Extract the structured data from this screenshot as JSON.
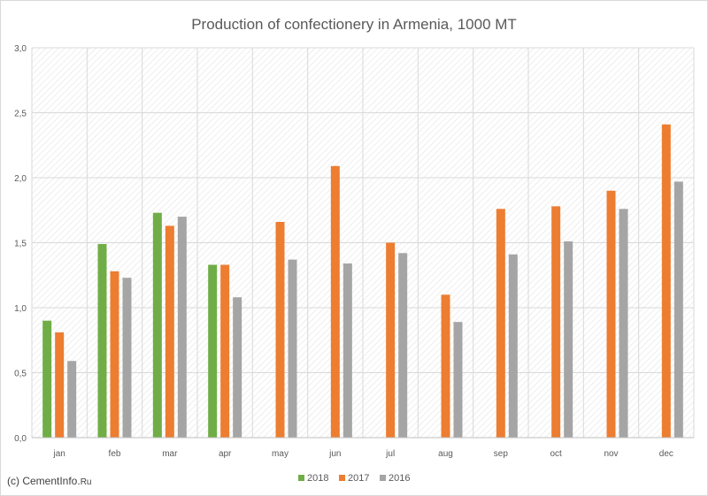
{
  "chart_data": {
    "type": "bar",
    "title": "Production of confectionery in Armenia, 1000 MT",
    "categories": [
      "jan",
      "feb",
      "mar",
      "apr",
      "may",
      "jun",
      "jul",
      "aug",
      "sep",
      "oct",
      "nov",
      "dec"
    ],
    "series": [
      {
        "name": "2018",
        "color": "#70ad47",
        "values": [
          0.9,
          1.49,
          1.73,
          1.33,
          null,
          null,
          null,
          null,
          null,
          null,
          null,
          null
        ]
      },
      {
        "name": "2017",
        "color": "#ed7d31",
        "values": [
          0.81,
          1.28,
          1.63,
          1.33,
          1.66,
          2.09,
          1.5,
          1.1,
          1.76,
          1.78,
          1.9,
          2.41
        ]
      },
      {
        "name": "2016",
        "color": "#a5a5a5",
        "values": [
          0.59,
          1.23,
          1.7,
          1.08,
          1.37,
          1.34,
          1.42,
          0.89,
          1.41,
          1.51,
          1.76,
          1.97
        ]
      }
    ],
    "ylim": [
      0,
      3
    ],
    "yticks": [
      0,
      0.5,
      1,
      1.5,
      2,
      2.5,
      3
    ],
    "ytick_labels": [
      "0,0",
      "0,5",
      "1,0",
      "1,5",
      "2,0",
      "2,5",
      "3,0"
    ],
    "grid": true,
    "legend": "bottom-center"
  },
  "footer": {
    "copyright_prefix": "(c) CementInfo.",
    "copyright_suffix": "Ru"
  }
}
